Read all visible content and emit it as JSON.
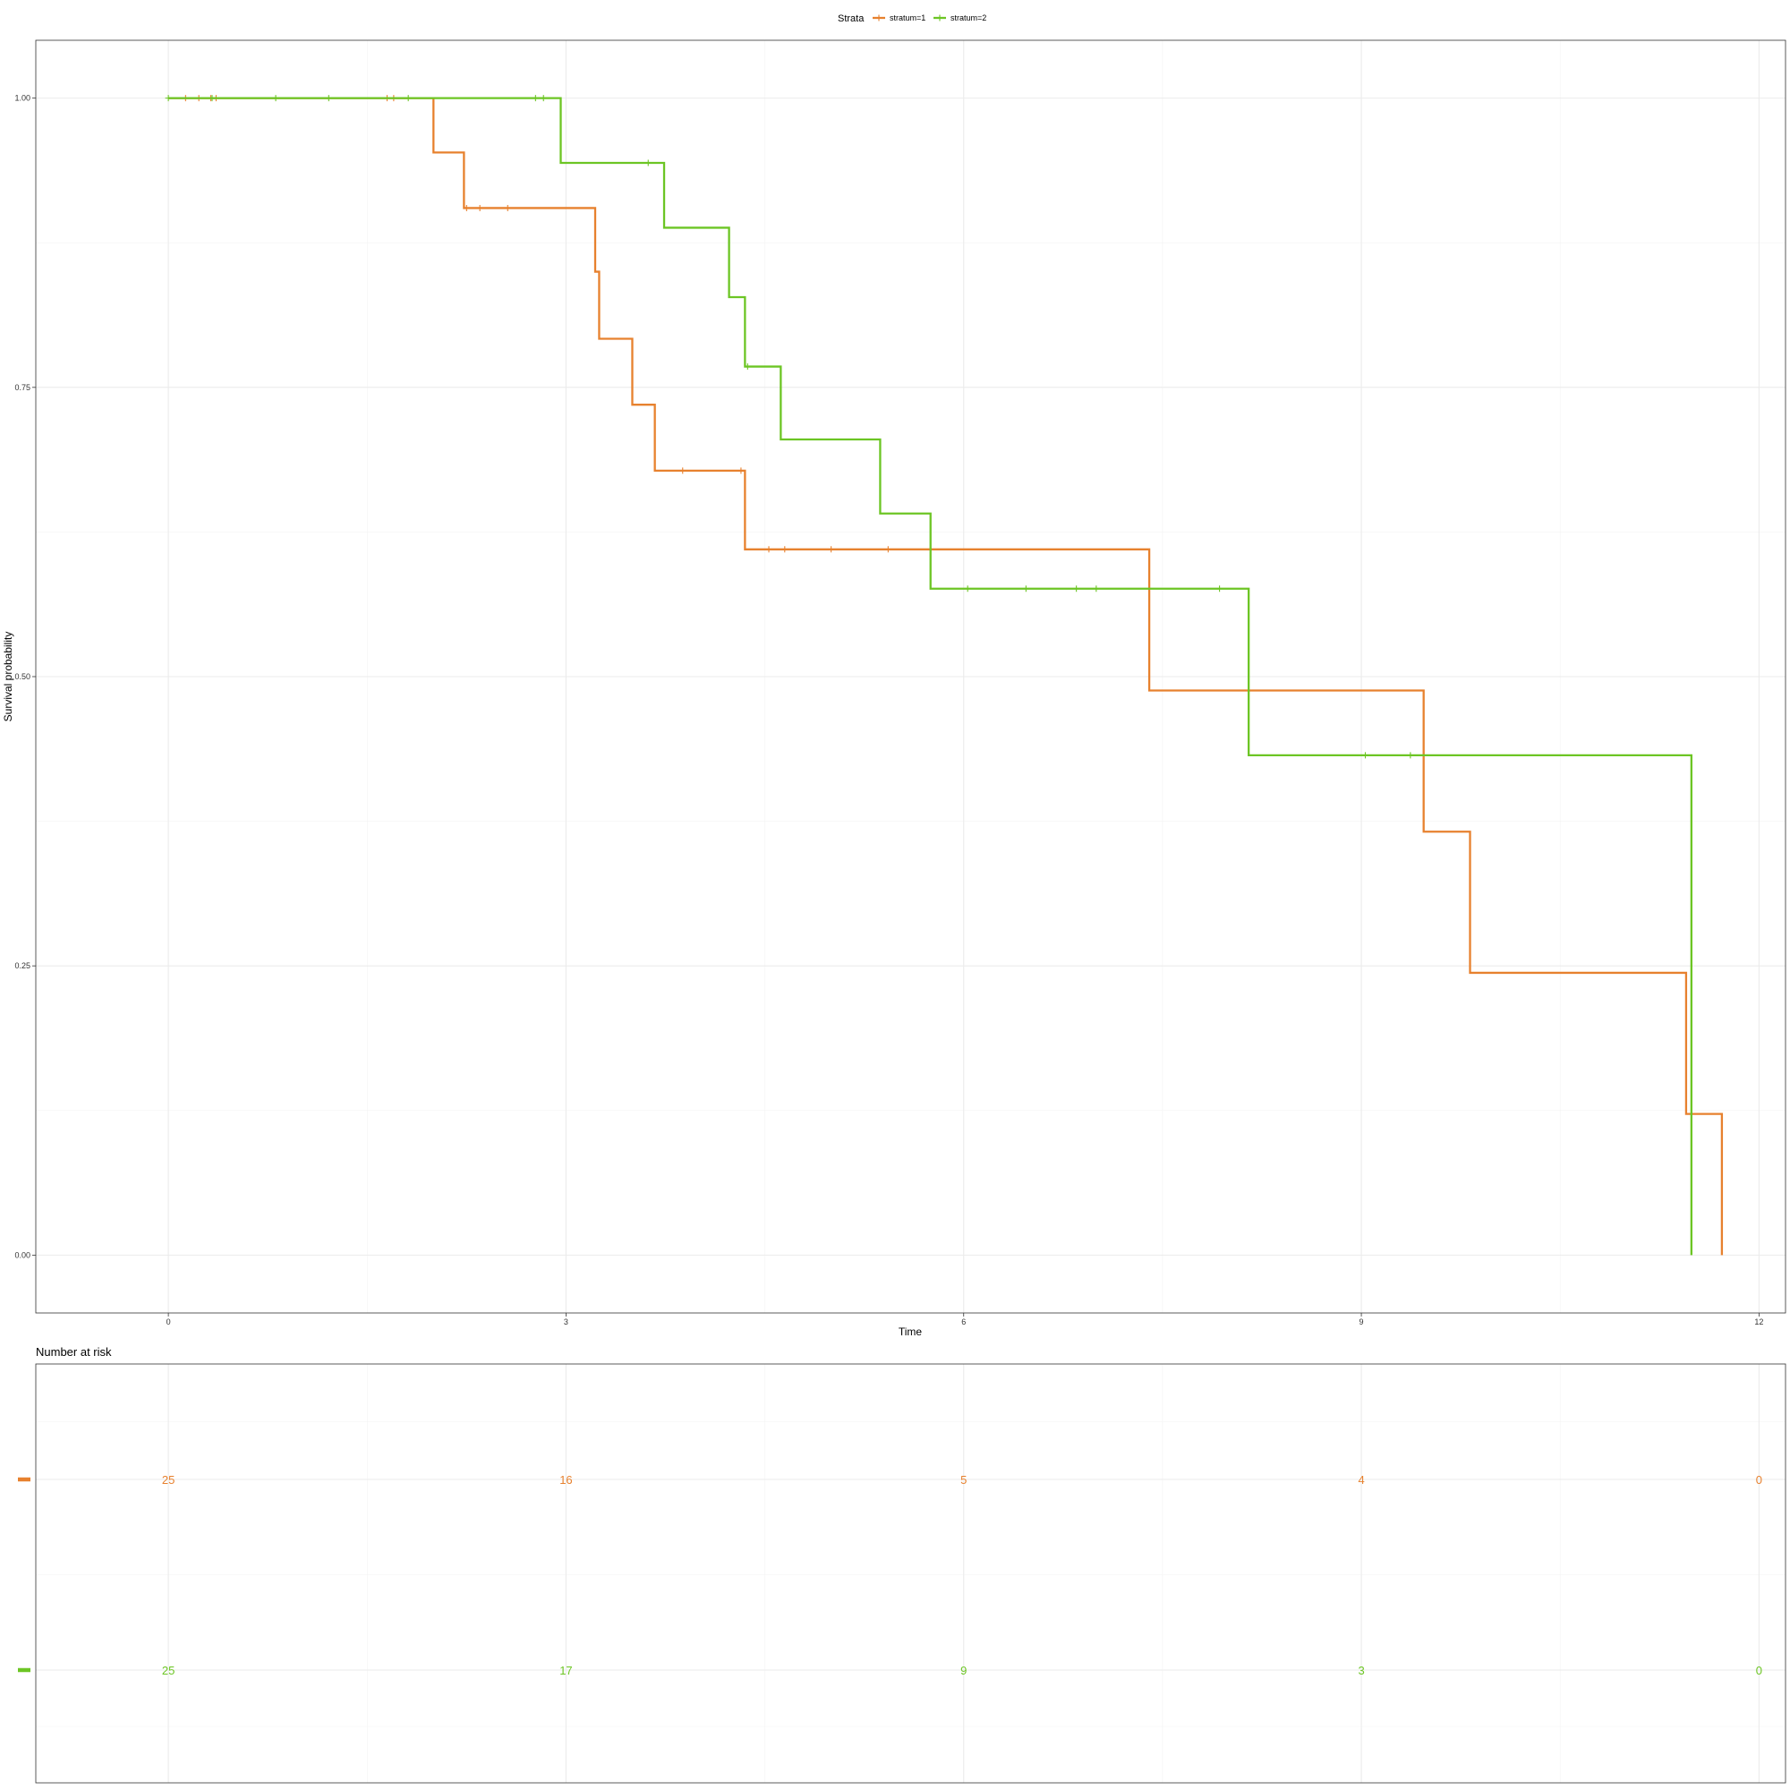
{
  "chart_data": {
    "type": "line",
    "subtype": "kaplan-meier",
    "xlabel": "Time",
    "ylabel": "Survival probability",
    "xlim": [
      -1,
      12.2
    ],
    "ylim": [
      -0.05,
      1.05
    ],
    "x_ticks": [
      0,
      3,
      6,
      9,
      12
    ],
    "x_tick_labels": [
      "0",
      "3",
      "6",
      "9",
      "12"
    ],
    "y_ticks": [
      0,
      0.25,
      0.5,
      0.75,
      1.0
    ],
    "y_tick_labels": [
      "0.00",
      "0.25",
      "0.50",
      "0.75",
      "1.00"
    ],
    "grid": true,
    "legend": {
      "title": "Strata",
      "position": "top",
      "entries": [
        "stratum=1",
        "stratum=2"
      ]
    },
    "series": [
      {
        "name": "stratum=1",
        "color": "#E7812E",
        "steps": [
          [
            0,
            1.0
          ],
          [
            2.0,
            0.953
          ],
          [
            2.23,
            0.905
          ],
          [
            3.22,
            0.85
          ],
          [
            3.25,
            0.792
          ],
          [
            3.5,
            0.735
          ],
          [
            3.67,
            0.678
          ],
          [
            4.35,
            0.61
          ],
          [
            7.4,
            0.488
          ],
          [
            9.47,
            0.366
          ],
          [
            9.82,
            0.244
          ],
          [
            11.45,
            0.122
          ],
          [
            11.72,
            0.0
          ]
        ],
        "censored": [
          [
            0.13,
            1.0
          ],
          [
            0.23,
            1.0
          ],
          [
            0.32,
            1.0
          ],
          [
            0.36,
            1.0
          ],
          [
            1.65,
            1.0
          ],
          [
            1.7,
            1.0
          ],
          [
            2.25,
            0.905
          ],
          [
            2.35,
            0.905
          ],
          [
            2.56,
            0.905
          ],
          [
            3.88,
            0.678
          ],
          [
            4.32,
            0.678
          ],
          [
            4.53,
            0.61
          ],
          [
            4.65,
            0.61
          ],
          [
            5.0,
            0.61
          ],
          [
            5.43,
            0.61
          ]
        ]
      },
      {
        "name": "stratum=2",
        "color": "#6CC524",
        "steps": [
          [
            0,
            1.0
          ],
          [
            2.96,
            0.944
          ],
          [
            3.74,
            0.888
          ],
          [
            4.23,
            0.828
          ],
          [
            4.35,
            0.768
          ],
          [
            4.62,
            0.705
          ],
          [
            5.37,
            0.641
          ],
          [
            5.75,
            0.576
          ],
          [
            8.15,
            0.432
          ],
          [
            11.49,
            0.0
          ]
        ],
        "censored": [
          [
            0.0,
            1.0
          ],
          [
            0.33,
            1.0
          ],
          [
            0.81,
            1.0
          ],
          [
            1.21,
            1.0
          ],
          [
            1.81,
            1.0
          ],
          [
            2.77,
            1.0
          ],
          [
            2.83,
            1.0
          ],
          [
            3.62,
            0.944
          ],
          [
            4.37,
            0.768
          ],
          [
            6.03,
            0.576
          ],
          [
            6.47,
            0.576
          ],
          [
            6.85,
            0.576
          ],
          [
            7.0,
            0.576
          ],
          [
            7.93,
            0.576
          ],
          [
            9.03,
            0.432
          ],
          [
            9.37,
            0.432
          ]
        ]
      }
    ],
    "risk_table": {
      "title": "Number at risk",
      "times": [
        0,
        3,
        6,
        9,
        12
      ],
      "rows": [
        {
          "name": "stratum=1",
          "color": "#E7812E",
          "values": [
            "25",
            "16",
            "5",
            "4",
            "0"
          ]
        },
        {
          "name": "stratum=2",
          "color": "#6CC524",
          "values": [
            "25",
            "17",
            "9",
            "3",
            "0"
          ]
        }
      ]
    }
  }
}
